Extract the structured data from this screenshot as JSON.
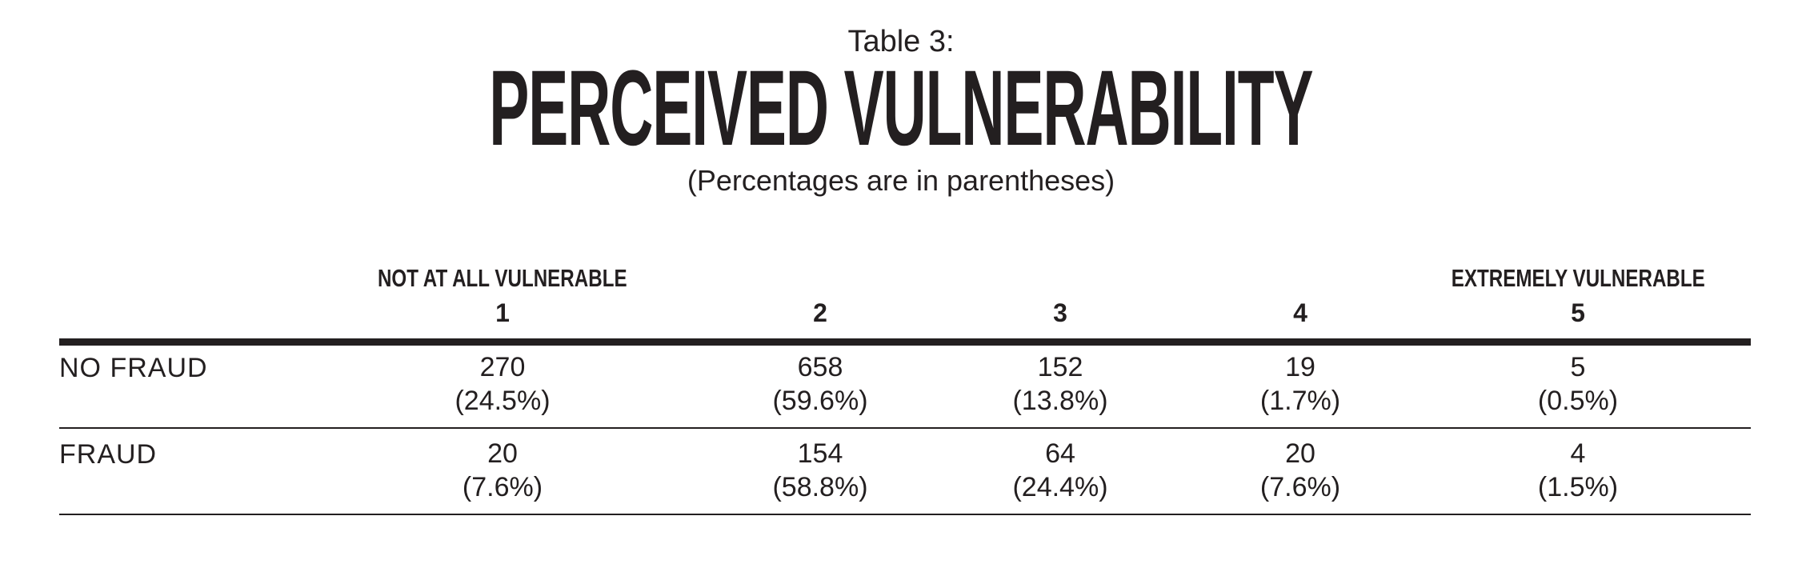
{
  "header": {
    "table_number": "Table 3:",
    "title": "PERCEIVED VULNERABILITY",
    "subtitle": "(Percentages are in parentheses)"
  },
  "columns": [
    {
      "anchor": "NOT AT ALL VULNERABLE",
      "label": "1"
    },
    {
      "anchor": "",
      "label": "2"
    },
    {
      "anchor": "",
      "label": "3"
    },
    {
      "anchor": "",
      "label": "4"
    },
    {
      "anchor": "EXTREMELY VULNERABLE",
      "label": "5"
    }
  ],
  "rows": [
    {
      "label": "NO FRAUD",
      "cells": [
        {
          "count": "270",
          "pct": "(24.5%)"
        },
        {
          "count": "658",
          "pct": "(59.6%)"
        },
        {
          "count": "152",
          "pct": "(13.8%)"
        },
        {
          "count": "19",
          "pct": "(1.7%)"
        },
        {
          "count": "5",
          "pct": "(0.5%)"
        }
      ]
    },
    {
      "label": "FRAUD",
      "cells": [
        {
          "count": "20",
          "pct": "(7.6%)"
        },
        {
          "count": "154",
          "pct": "(58.8%)"
        },
        {
          "count": "64",
          "pct": "(24.4%)"
        },
        {
          "count": "20",
          "pct": "(7.6%)"
        },
        {
          "count": "4",
          "pct": "(1.5%)"
        }
      ]
    }
  ],
  "chart_data": {
    "type": "table",
    "title": "PERCEIVED VULNERABILITY",
    "subtitle": "(Percentages are in parentheses)",
    "columns": [
      "1",
      "2",
      "3",
      "4",
      "5"
    ],
    "column_anchors": {
      "1": "NOT AT ALL VULNERABLE",
      "5": "EXTREMELY VULNERABLE"
    },
    "rows": [
      {
        "name": "NO FRAUD",
        "counts": [
          270,
          658,
          152,
          19,
          5
        ],
        "percentages": [
          24.5,
          59.6,
          13.8,
          1.7,
          0.5
        ]
      },
      {
        "name": "FRAUD",
        "counts": [
          20,
          154,
          64,
          20,
          4
        ],
        "percentages": [
          7.6,
          58.8,
          24.4,
          7.6,
          1.5
        ]
      }
    ]
  }
}
